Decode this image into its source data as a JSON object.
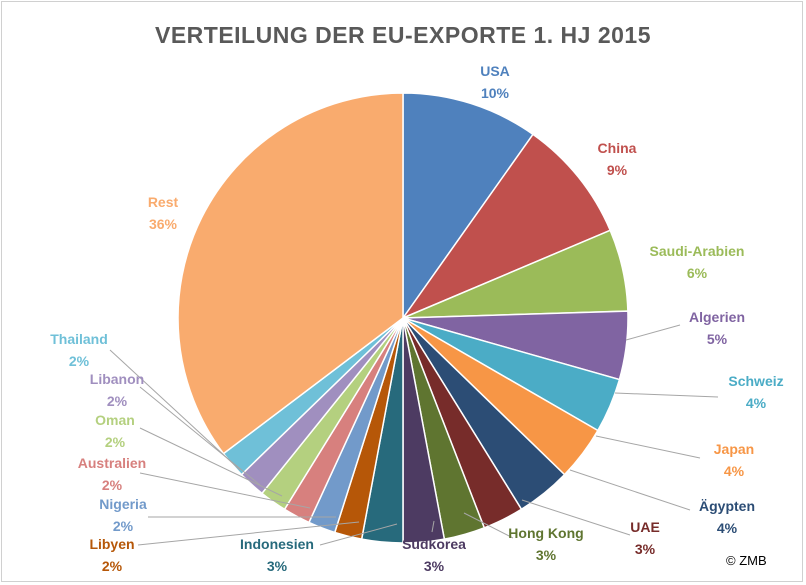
{
  "chart_data": {
    "type": "pie",
    "title": "VERTEILUNG DER EU-EXPORTE 1. HJ 2015",
    "slices": [
      {
        "label": "USA",
        "value": 10,
        "value_label": "10%",
        "color": "#4f81bd"
      },
      {
        "label": "China",
        "value": 9,
        "value_label": "9%",
        "color": "#c0504d"
      },
      {
        "label": "Saudi-Arabien",
        "value": 6,
        "value_label": "6%",
        "color": "#9bbb59"
      },
      {
        "label": "Algerien",
        "value": 5,
        "value_label": "5%",
        "color": "#8064a2"
      },
      {
        "label": "Schweiz",
        "value": 4,
        "value_label": "4%",
        "color": "#4bacc6"
      },
      {
        "label": "Japan",
        "value": 4,
        "value_label": "4%",
        "color": "#f79646"
      },
      {
        "label": "Ägypten",
        "value": 4,
        "value_label": "4%",
        "color": "#2c4d75"
      },
      {
        "label": "UAE",
        "value": 3,
        "value_label": "3%",
        "color": "#772c2a"
      },
      {
        "label": "Hong Kong",
        "value": 3,
        "value_label": "3%",
        "color": "#5f7530"
      },
      {
        "label": "Südkorea",
        "value": 3,
        "value_label": "3%",
        "color": "#4d3b62"
      },
      {
        "label": "Indonesien",
        "value": 3,
        "value_label": "3%",
        "color": "#276a7c"
      },
      {
        "label": "Libyen",
        "value": 2,
        "value_label": "2%",
        "color": "#b65708"
      },
      {
        "label": "Nigeria",
        "value": 2,
        "value_label": "2%",
        "color": "#729aca"
      },
      {
        "label": "Australien",
        "value": 2,
        "value_label": "2%",
        "color": "#d7807e"
      },
      {
        "label": "Oman",
        "value": 2,
        "value_label": "2%",
        "color": "#b4d07f"
      },
      {
        "label": "Libanon",
        "value": 2,
        "value_label": "2%",
        "color": "#a08fbf"
      },
      {
        "label": "Thailand",
        "value": 2,
        "value_label": "2%",
        "color": "#6fc0d8"
      },
      {
        "label": "Rest",
        "value": 36,
        "value_label": "36%",
        "color": "#f9ab6e"
      }
    ],
    "legend": "none",
    "data_labels": "outside, with leader lines",
    "label_text_color_matches_slice": true
  },
  "copyright": "© ZMB"
}
